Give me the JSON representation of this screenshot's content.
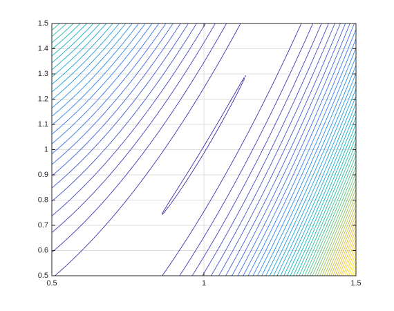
{
  "chart_data": {
    "type": "contour",
    "xlim": [
      0.5,
      1.5
    ],
    "ylim": [
      0.5,
      1.5
    ],
    "xticks": [
      0.5,
      1,
      1.5
    ],
    "yticks": [
      0.5,
      0.6,
      0.7,
      0.8,
      0.9,
      1,
      1.1,
      1.2,
      1.3,
      1.4,
      1.5
    ],
    "grid": true,
    "colormap": "parula",
    "levels": [
      0.02,
      6,
      12,
      18,
      24,
      30,
      36,
      42,
      48,
      54,
      60,
      66,
      72,
      78,
      84,
      90,
      96,
      102,
      108,
      114,
      120,
      126,
      132,
      138,
      144,
      150,
      156,
      162,
      168,
      174,
      180,
      186,
      192,
      198,
      204,
      210,
      216,
      222,
      228,
      234,
      240,
      246,
      252,
      258,
      264,
      270,
      276,
      282,
      288,
      294,
      300
    ]
  }
}
